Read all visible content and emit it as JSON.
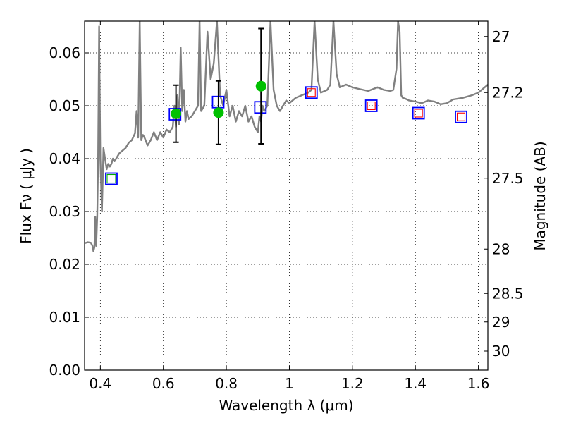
{
  "chart_data": {
    "type": "scatter",
    "xlabel": "Wavelength  λ (μm)",
    "ylabel": "Flux  Fν  ( μJy )",
    "ylabel_right": "Magnitude (AB)",
    "xlim": [
      0.35,
      1.63
    ],
    "ylim": [
      0.0,
      0.066
    ],
    "grid": true,
    "x_ticks": [
      {
        "value": 0.4,
        "label": "0.4"
      },
      {
        "value": 0.6,
        "label": "0.6"
      },
      {
        "value": 0.8,
        "label": "0.8"
      },
      {
        "value": 1.0,
        "label": "1"
      },
      {
        "value": 1.2,
        "label": "1.2"
      },
      {
        "value": 1.4,
        "label": "1.4"
      },
      {
        "value": 1.6,
        "label": "1.6"
      }
    ],
    "y_ticks": [
      {
        "value": 0.0,
        "label": "0.00"
      },
      {
        "value": 0.01,
        "label": "0.01"
      },
      {
        "value": 0.02,
        "label": "0.02"
      },
      {
        "value": 0.03,
        "label": "0.03"
      },
      {
        "value": 0.04,
        "label": "0.04"
      },
      {
        "value": 0.05,
        "label": "0.05"
      },
      {
        "value": 0.06,
        "label": "0.06"
      }
    ],
    "right_ticks": [
      {
        "flux": 0.0631,
        "label": "27"
      },
      {
        "flux": 0.0525,
        "label": "27.2"
      },
      {
        "flux": 0.0363,
        "label": "27.5"
      },
      {
        "flux": 0.0229,
        "label": "28"
      },
      {
        "flux": 0.0145,
        "label": "28.5"
      },
      {
        "flux": 0.0091,
        "label": "29"
      },
      {
        "flux": 0.0036,
        "label": "30"
      }
    ],
    "series": [
      {
        "kind": "spectrum",
        "color": "#808080",
        "x": [
          0.35,
          0.36,
          0.37,
          0.375,
          0.378,
          0.381,
          0.384,
          0.387,
          0.39,
          0.393,
          0.396,
          0.4,
          0.405,
          0.41,
          0.415,
          0.42,
          0.425,
          0.43,
          0.435,
          0.44,
          0.445,
          0.45,
          0.46,
          0.47,
          0.48,
          0.49,
          0.5,
          0.51,
          0.515,
          0.52,
          0.525,
          0.53,
          0.535,
          0.54,
          0.55,
          0.56,
          0.57,
          0.58,
          0.59,
          0.6,
          0.61,
          0.62,
          0.63,
          0.635,
          0.64,
          0.645,
          0.65,
          0.655,
          0.66,
          0.665,
          0.67,
          0.675,
          0.68,
          0.69,
          0.7,
          0.71,
          0.715,
          0.72,
          0.73,
          0.74,
          0.75,
          0.76,
          0.77,
          0.78,
          0.79,
          0.8,
          0.81,
          0.82,
          0.83,
          0.84,
          0.85,
          0.86,
          0.87,
          0.88,
          0.89,
          0.9,
          0.905,
          0.91,
          0.915,
          0.92,
          0.93,
          0.94,
          0.95,
          0.96,
          0.97,
          0.98,
          0.99,
          1.0,
          1.02,
          1.04,
          1.06,
          1.07,
          1.08,
          1.09,
          1.1,
          1.12,
          1.13,
          1.14,
          1.15,
          1.16,
          1.18,
          1.2,
          1.22,
          1.25,
          1.28,
          1.3,
          1.32,
          1.33,
          1.34,
          1.345,
          1.35,
          1.355,
          1.36,
          1.37,
          1.38,
          1.4,
          1.42,
          1.44,
          1.46,
          1.48,
          1.5,
          1.52,
          1.55,
          1.58,
          1.6,
          1.62,
          1.63
        ],
        "y": [
          0.024,
          0.0242,
          0.0241,
          0.0235,
          0.0225,
          0.0232,
          0.029,
          0.0235,
          0.029,
          0.04,
          0.065,
          0.04,
          0.03,
          0.042,
          0.04,
          0.038,
          0.039,
          0.0385,
          0.039,
          0.04,
          0.0395,
          0.04,
          0.041,
          0.0415,
          0.042,
          0.043,
          0.0435,
          0.0448,
          0.049,
          0.044,
          0.066,
          0.0435,
          0.0445,
          0.044,
          0.0425,
          0.0435,
          0.045,
          0.0435,
          0.045,
          0.044,
          0.0455,
          0.045,
          0.046,
          0.05,
          0.046,
          0.052,
          0.0465,
          0.061,
          0.049,
          0.053,
          0.047,
          0.049,
          0.0475,
          0.048,
          0.049,
          0.05,
          0.066,
          0.049,
          0.05,
          0.064,
          0.055,
          0.058,
          0.066,
          0.052,
          0.05,
          0.053,
          0.048,
          0.05,
          0.047,
          0.049,
          0.048,
          0.05,
          0.047,
          0.048,
          0.046,
          0.045,
          0.048,
          0.047,
          0.05,
          0.049,
          0.05,
          0.066,
          0.053,
          0.05,
          0.049,
          0.05,
          0.051,
          0.0505,
          0.0515,
          0.052,
          0.0525,
          0.053,
          0.066,
          0.055,
          0.0525,
          0.053,
          0.054,
          0.066,
          0.056,
          0.0535,
          0.054,
          0.0535,
          0.0532,
          0.0528,
          0.0535,
          0.053,
          0.0528,
          0.053,
          0.057,
          0.066,
          0.064,
          0.052,
          0.0515,
          0.0513,
          0.051,
          0.0508,
          0.0505,
          0.051,
          0.0508,
          0.0503,
          0.0505,
          0.0512,
          0.0515,
          0.052,
          0.0525,
          0.0535,
          0.054
        ]
      },
      {
        "kind": "squares-blue",
        "color": "#0000ff",
        "x": [
          0.435,
          0.637,
          0.774,
          0.908,
          1.07,
          1.26,
          1.41,
          1.545
        ],
        "y": [
          0.0362,
          0.0484,
          0.0507,
          0.0497,
          0.0525,
          0.05,
          0.0486,
          0.0479
        ]
      },
      {
        "kind": "squares-red",
        "color": "#ff0000",
        "x": [
          1.07,
          1.26,
          1.41,
          1.545
        ],
        "y": [
          0.0525,
          0.05,
          0.0486,
          0.0479
        ]
      },
      {
        "kind": "squares-green",
        "color": "#00aa00",
        "x": [
          0.435
        ],
        "y": [
          0.0362
        ]
      },
      {
        "kind": "measured",
        "color": "#00c000",
        "x": [
          0.64,
          0.775,
          0.91
        ],
        "y": [
          0.0485,
          0.0487,
          0.0537
        ],
        "err_low": [
          0.0054,
          0.006,
          0.0109
        ],
        "err_high": [
          0.0054,
          0.006,
          0.0109
        ]
      }
    ]
  }
}
